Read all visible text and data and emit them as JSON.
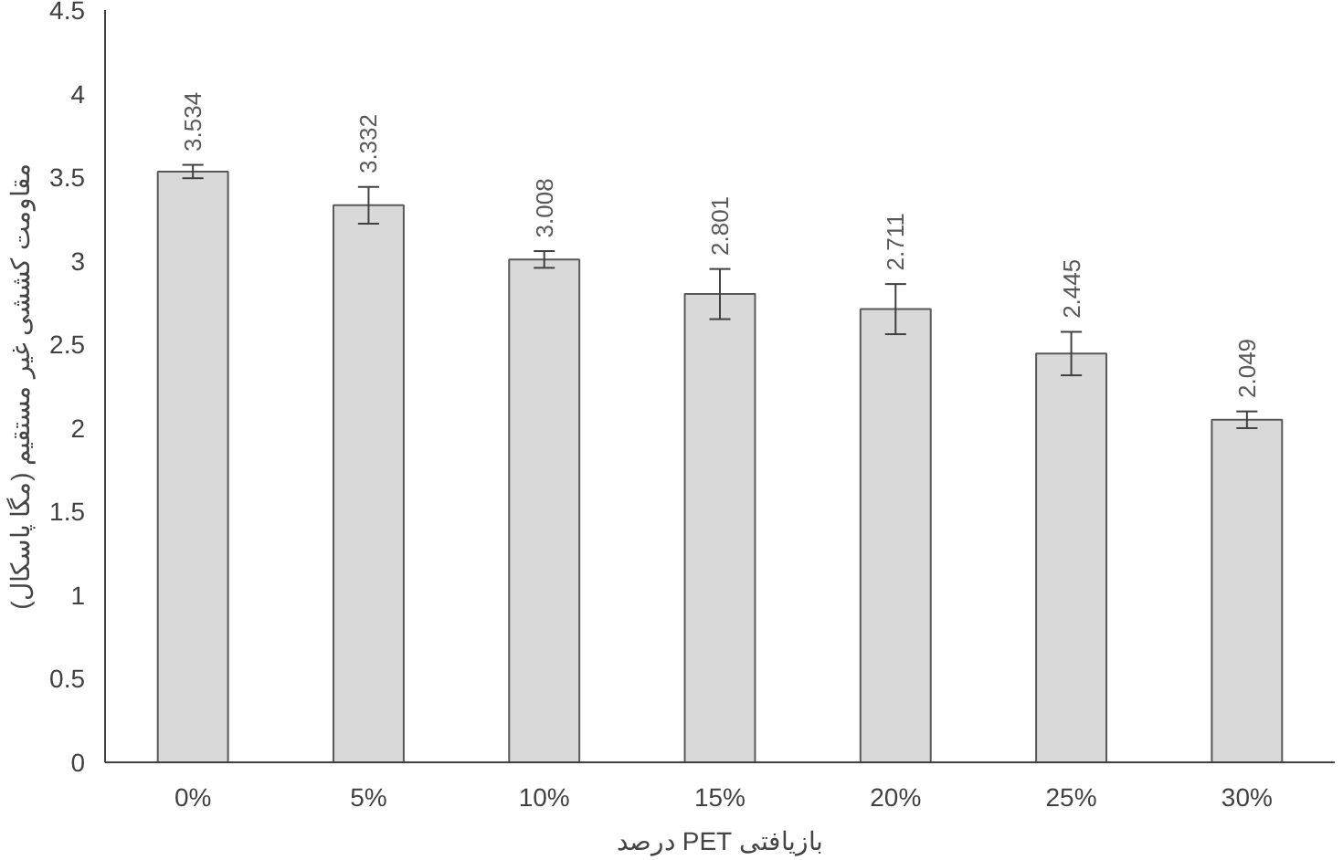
{
  "chart_data": {
    "type": "bar",
    "xlabel": "درصد PET بازیافتی",
    "ylabel": "مقاومت کششی غیر مستقیم (مگا پاسکال)",
    "categories": [
      "0%",
      "5%",
      "10%",
      "15%",
      "20%",
      "25%",
      "30%"
    ],
    "values": [
      3.534,
      3.332,
      3.008,
      2.801,
      2.711,
      2.445,
      2.049
    ],
    "errors": [
      0.04,
      0.11,
      0.05,
      0.15,
      0.15,
      0.13,
      0.05
    ],
    "color": "#d9d9d9",
    "data_labels": true,
    "grid": false,
    "ylim": [
      0,
      4.5
    ],
    "yticks": [
      0,
      0.5,
      1,
      1.5,
      2,
      2.5,
      3,
      3.5,
      4,
      4.5
    ]
  }
}
